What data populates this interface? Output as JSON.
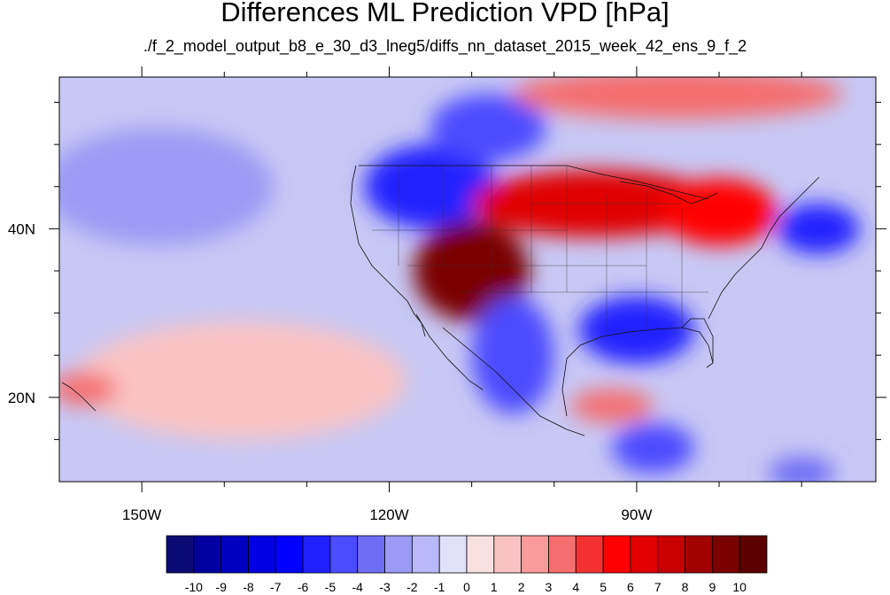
{
  "title": "Differences ML Prediction VPD [hPa]",
  "subtitle": "./f_2_model_output_b8_e_30_d3_lneg5/diffs_nn_dataset_2015_week_42_ens_9_f_2",
  "map": {
    "lon_range": [
      -160,
      -61
    ],
    "lat_range": [
      10,
      58
    ],
    "lon_major_ticks": [
      -150,
      -120,
      -90
    ],
    "lon_major_labels": [
      "150W",
      "120W",
      "90W"
    ],
    "lon_minor_ticks": [
      -140,
      -130,
      -110,
      -100,
      -80,
      -70
    ],
    "lat_major_ticks": [
      20,
      40
    ],
    "lat_major_labels": [
      "20N",
      "40N"
    ],
    "lat_minor_ticks": [
      15,
      25,
      30,
      35,
      45,
      50,
      55
    ],
    "features": [
      {
        "name": "pacific-positive",
        "lon": -138,
        "lat": 22,
        "rx": 20,
        "ry": 7,
        "value": 1
      },
      {
        "name": "hawaii-positive",
        "lon": -157,
        "lat": 21,
        "rx": 4,
        "ry": 2,
        "value": 3
      },
      {
        "name": "west-pacific-negative",
        "lon": -148,
        "lat": 45,
        "rx": 14,
        "ry": 7,
        "value": -3
      },
      {
        "name": "northwest-negative",
        "lon": -115,
        "lat": 45,
        "rx": 8,
        "ry": 5,
        "value": -6
      },
      {
        "name": "canada-negative",
        "lon": -108,
        "lat": 52,
        "rx": 7,
        "ry": 4,
        "value": -5
      },
      {
        "name": "southwest-positive",
        "lon": -110,
        "lat": 35,
        "rx": 7,
        "ry": 6,
        "value": 9
      },
      {
        "name": "plains-positive",
        "lon": -95,
        "lat": 43,
        "rx": 15,
        "ry": 4,
        "value": 6
      },
      {
        "name": "northeast-positive",
        "lon": -80,
        "lat": 42,
        "rx": 7,
        "ry": 4,
        "value": 5
      },
      {
        "name": "gulf-negative",
        "lon": -90,
        "lat": 28,
        "rx": 7,
        "ry": 4,
        "value": -6
      },
      {
        "name": "atlantic-negative",
        "lon": -68,
        "lat": 40,
        "rx": 5,
        "ry": 3,
        "value": -6
      },
      {
        "name": "mexico-negative",
        "lon": -105,
        "lat": 25,
        "rx": 5,
        "ry": 7,
        "value": -5
      },
      {
        "name": "central-america-negative",
        "lon": -88,
        "lat": 14,
        "rx": 5,
        "ry": 3,
        "value": -5
      },
      {
        "name": "caribbean-negative",
        "lon": -70,
        "lat": 11,
        "rx": 4,
        "ry": 2,
        "value": -4
      },
      {
        "name": "mexico-east-positive",
        "lon": -93,
        "lat": 19,
        "rx": 5,
        "ry": 2,
        "value": 3
      },
      {
        "name": "arctic-positive",
        "lon": -85,
        "lat": 56,
        "rx": 20,
        "ry": 3,
        "value": 3
      }
    ]
  },
  "colorbar": {
    "labels": [
      "-10",
      "-9",
      "-8",
      "-7",
      "-6",
      "-5",
      "-4",
      "-3",
      "-2",
      "-1",
      "0",
      "1",
      "2",
      "3",
      "4",
      "5",
      "6",
      "7",
      "8",
      "9",
      "10"
    ],
    "colors": [
      "#0a0a73",
      "#0000a0",
      "#0000c0",
      "#0000e0",
      "#0000ff",
      "#2020ff",
      "#4b4bff",
      "#6e6ef5",
      "#9b9bf5",
      "#b9b9fa",
      "#e1e1fa",
      "#fae1e1",
      "#fac3c3",
      "#fa9b9b",
      "#f56e6e",
      "#f53232",
      "#ff0000",
      "#e00000",
      "#c80000",
      "#a00000",
      "#7a0000",
      "#5a0000"
    ]
  }
}
